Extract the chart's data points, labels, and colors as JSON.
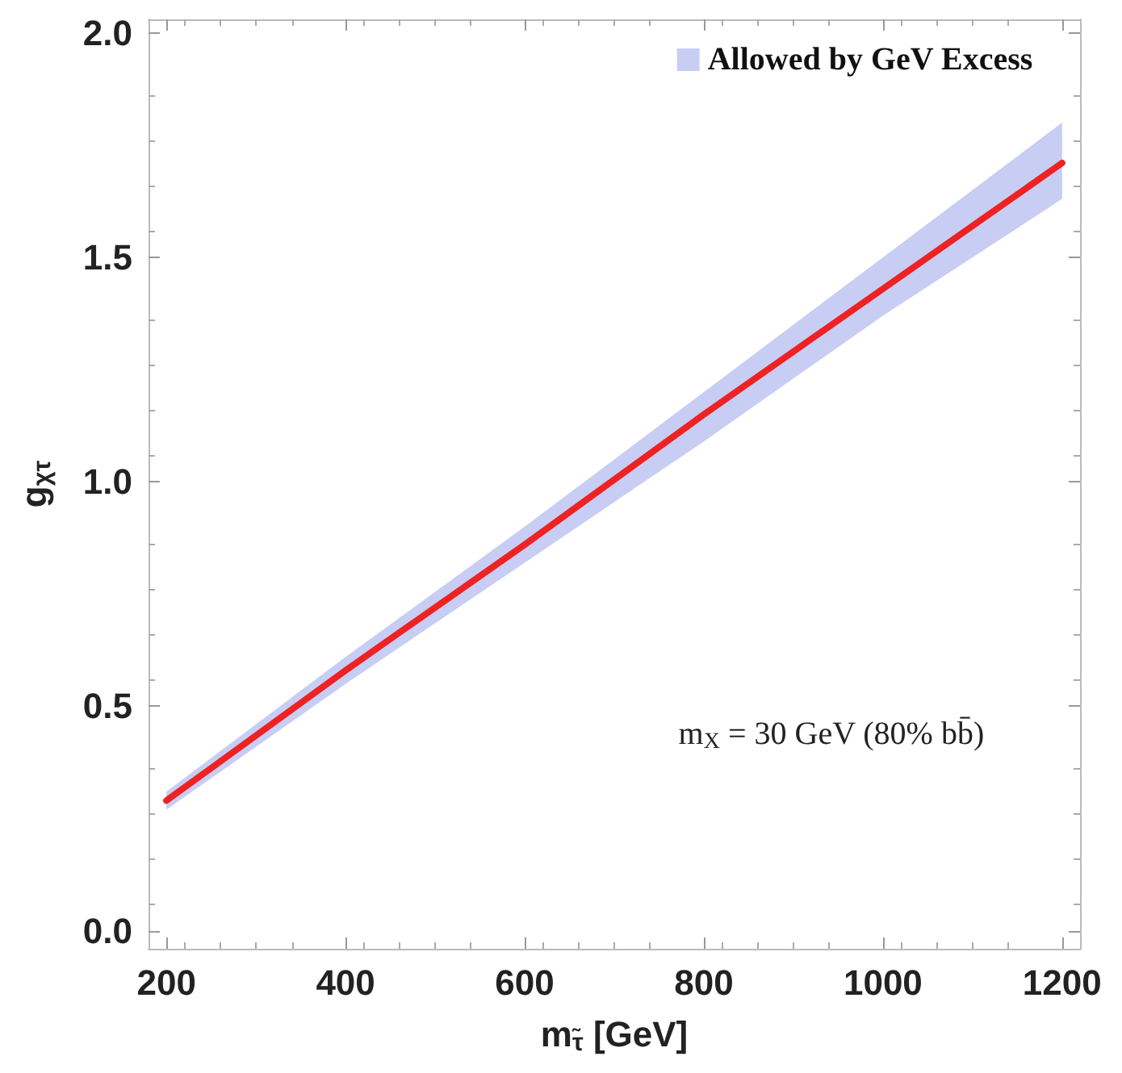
{
  "chart_data": {
    "type": "line",
    "xlabel": "m$_{τ̃}$ [GeV]",
    "ylabel": "g$_{χτ}$",
    "x": [
      200,
      400,
      600,
      800,
      1000,
      1200
    ],
    "series": [
      {
        "name": "Allowed by GeV Excess",
        "color": "#c8cdf4",
        "values": [
          null,
          null,
          null,
          null,
          null,
          null
        ],
        "lower": [
          0.27,
          0.55,
          0.82,
          1.09,
          1.37,
          1.63
        ],
        "upper": [
          0.31,
          0.61,
          0.9,
          1.2,
          1.5,
          1.8
        ]
      },
      {
        "color": "#ee2222",
        "values": [
          0.29,
          0.58,
          0.86,
          1.15,
          1.43,
          1.71
        ]
      }
    ],
    "annotations": [
      "m$_{X}$ = 30 GeV (80% bb̄)"
    ],
    "xlim": [
      180,
      1220
    ],
    "xticks": [
      200,
      400,
      600,
      800,
      1000,
      1200
    ],
    "ylim": [
      -0.04,
      2.03
    ],
    "yticks": [
      {
        "value": 0,
        "label": "0.0"
      },
      {
        "value": 0.5,
        "label": "0.5"
      },
      {
        "value": 1,
        "label": "1.0"
      },
      {
        "value": 1.5,
        "label": "1.5"
      },
      {
        "value": 2,
        "label": "2.0"
      }
    ],
    "legend": "top right",
    "marker": "none",
    "line_style": "solid"
  }
}
